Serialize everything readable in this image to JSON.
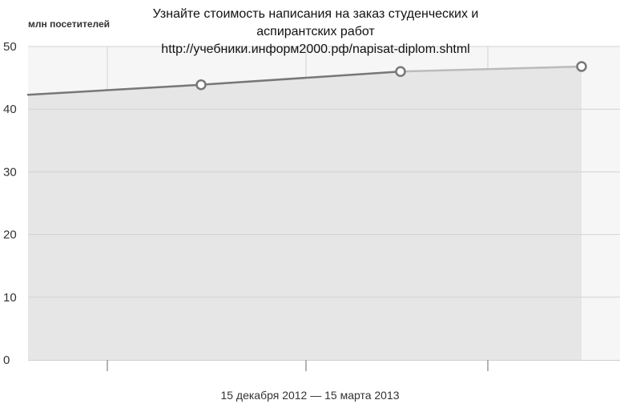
{
  "banner": {
    "line1": "Узнайте стоимость написания на заказ студенческих и",
    "line2": "аспирантских работ",
    "line3": "http://учебники.информ2000.рф/napisat-diplom.shtml"
  },
  "colors": {
    "plot_background": "#f6f6f6",
    "area_fill": "#e6e6e6",
    "grid": "#d2d2d2",
    "line_dark": "#777777",
    "line_light": "#bbbbbb",
    "marker_fill": "#ffffff"
  },
  "chart_data": {
    "type": "area",
    "ylabel": "млн посетителей",
    "xlabel": "15 декабря 2012 — 15 марта 2013",
    "ylim": [
      0,
      50
    ],
    "yticks": [
      "0",
      "10",
      "20",
      "30",
      "40",
      "50"
    ],
    "grid": true,
    "x": [
      0,
      1,
      2,
      3
    ],
    "series": [
      {
        "values": [
          42.3,
          43.9,
          46.0,
          46.8
        ],
        "markers": [
          false,
          true,
          true,
          true
        ]
      }
    ]
  }
}
